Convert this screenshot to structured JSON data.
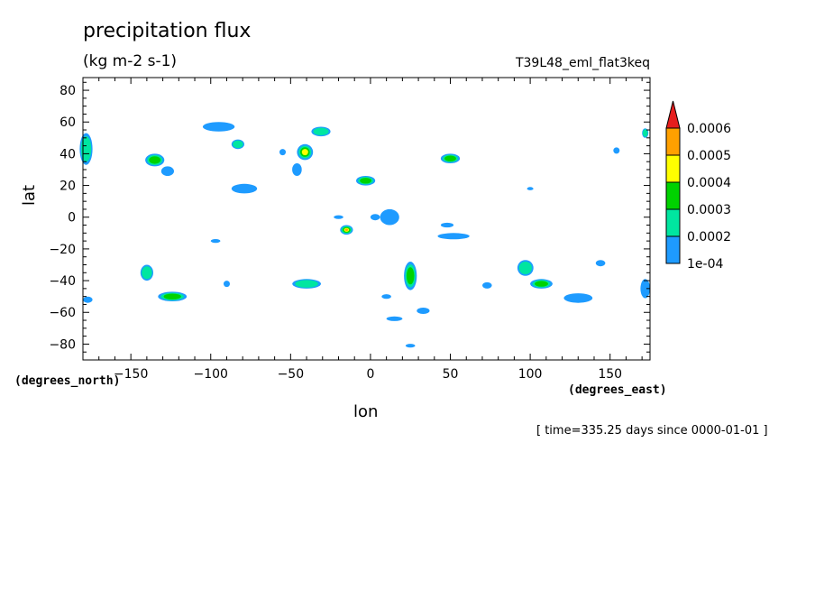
{
  "header": {
    "title": "precipitation flux",
    "units": "(kg m-2 s-1)",
    "run_name": "T39L48_eml_flat3keq",
    "time_note": "[ time=335.25 days since 0000-01-01 ]"
  },
  "axes": {
    "xlabel": "lon",
    "ylabel": "lat",
    "x_units": "(degrees_east)",
    "y_units": "(degrees_north)"
  },
  "colors": {
    "level1": "#1e9bff",
    "level2": "#00e6a0",
    "level3": "#00d200",
    "level4": "#ffff00",
    "level5": "#ffa000",
    "level6": "#e61e1e"
  },
  "chart_data": {
    "type": "contour",
    "title": "precipitation flux",
    "subtitle": "(kg m-2 s-1)",
    "xlabel": "lon",
    "ylabel": "lat",
    "xlim": [
      -180,
      175
    ],
    "ylim": [
      -90,
      88
    ],
    "xticks": [
      -150,
      -100,
      -50,
      0,
      50,
      100,
      150
    ],
    "yticks": [
      -80,
      -60,
      -40,
      -20,
      0,
      20,
      40,
      60,
      80
    ],
    "grid": false,
    "colorbar": {
      "levels": [
        "1e-04",
        "0.0002",
        "0.0003",
        "0.0004",
        "0.0005",
        "0.0006"
      ],
      "placement": "right"
    },
    "features": [
      {
        "lon": -178,
        "lat": 43,
        "dlon": 4,
        "dlat": 10,
        "peak": 0.00022
      },
      {
        "lon": -135,
        "lat": 36,
        "dlon": 6,
        "dlat": 4,
        "peak": 0.0003
      },
      {
        "lon": -127,
        "lat": 29,
        "dlon": 4,
        "dlat": 3,
        "peak": 0.00012
      },
      {
        "lon": -95,
        "lat": 57,
        "dlon": 10,
        "dlat": 3,
        "peak": 0.00016
      },
      {
        "lon": -83,
        "lat": 46,
        "dlon": 4,
        "dlat": 3,
        "peak": 0.00025
      },
      {
        "lon": -79,
        "lat": 18,
        "dlon": 8,
        "dlat": 3,
        "peak": 0.00018
      },
      {
        "lon": -41,
        "lat": 41,
        "dlon": 5,
        "dlat": 5,
        "peak": 0.00042
      },
      {
        "lon": -46,
        "lat": 30,
        "dlon": 3,
        "dlat": 4,
        "peak": 0.00015
      },
      {
        "lon": -31,
        "lat": 54,
        "dlon": 6,
        "dlat": 3,
        "peak": 0.00022
      },
      {
        "lon": -55,
        "lat": 41,
        "dlon": 2,
        "dlat": 2,
        "peak": 0.00012
      },
      {
        "lon": -3,
        "lat": 23,
        "dlon": 6,
        "dlat": 3,
        "peak": 0.0003
      },
      {
        "lon": 50,
        "lat": 37,
        "dlon": 6,
        "dlat": 3,
        "peak": 0.00032
      },
      {
        "lon": -15,
        "lat": -8,
        "dlon": 4,
        "dlat": 3,
        "peak": 0.00058
      },
      {
        "lon": 12,
        "lat": 0,
        "dlon": 6,
        "dlat": 5,
        "peak": 0.00014
      },
      {
        "lon": 52,
        "lat": -12,
        "dlon": 10,
        "dlat": 2,
        "peak": 0.00013
      },
      {
        "lon": 48,
        "lat": -5,
        "dlon": 4,
        "dlat": 1.5,
        "peak": 0.00011
      },
      {
        "lon": -140,
        "lat": -35,
        "dlon": 4,
        "dlat": 5,
        "peak": 0.00028
      },
      {
        "lon": -124,
        "lat": -50,
        "dlon": 9,
        "dlat": 3,
        "peak": 0.00034
      },
      {
        "lon": -177,
        "lat": -52,
        "dlon": 3,
        "dlat": 2,
        "peak": 0.00014
      },
      {
        "lon": -40,
        "lat": -42,
        "dlon": 9,
        "dlat": 3,
        "peak": 0.00024
      },
      {
        "lon": 25,
        "lat": -37,
        "dlon": 4,
        "dlat": 9,
        "peak": 0.0003
      },
      {
        "lon": 97,
        "lat": -32,
        "dlon": 5,
        "dlat": 5,
        "peak": 0.00026
      },
      {
        "lon": 107,
        "lat": -42,
        "dlon": 7,
        "dlat": 3,
        "peak": 0.00034
      },
      {
        "lon": 130,
        "lat": -51,
        "dlon": 9,
        "dlat": 3,
        "peak": 0.00018
      },
      {
        "lon": 144,
        "lat": -29,
        "dlon": 3,
        "dlat": 2,
        "peak": 0.00016
      },
      {
        "lon": 172,
        "lat": -45,
        "dlon": 3,
        "dlat": 6,
        "peak": 0.00018
      },
      {
        "lon": 172,
        "lat": 53,
        "dlon": 2,
        "dlat": 3,
        "peak": 0.00024
      },
      {
        "lon": 154,
        "lat": 42,
        "dlon": 2,
        "dlat": 2,
        "peak": 0.00013
      },
      {
        "lon": 33,
        "lat": -59,
        "dlon": 4,
        "dlat": 2,
        "peak": 0.00016
      },
      {
        "lon": 15,
        "lat": -64,
        "dlon": 5,
        "dlat": 1.5,
        "peak": 0.00013
      },
      {
        "lon": -90,
        "lat": -42,
        "dlon": 2,
        "dlat": 2,
        "peak": 0.00013
      },
      {
        "lon": -97,
        "lat": -15,
        "dlon": 3,
        "dlat": 1.2,
        "peak": 0.00011
      },
      {
        "lon": 73,
        "lat": -43,
        "dlon": 3,
        "dlat": 2,
        "peak": 0.00013
      },
      {
        "lon": 25,
        "lat": -81,
        "dlon": 3,
        "dlat": 1.2,
        "peak": 0.00011
      },
      {
        "lon": -20,
        "lat": 0,
        "dlon": 3,
        "dlat": 1.2,
        "peak": 0.00011
      },
      {
        "lon": 3,
        "lat": 0,
        "dlon": 3,
        "dlat": 2,
        "peak": 0.00012
      },
      {
        "lon": 10,
        "lat": -50,
        "dlon": 3,
        "dlat": 1.5,
        "peak": 0.00011
      },
      {
        "lon": 100,
        "lat": 18,
        "dlon": 2,
        "dlat": 1,
        "peak": 0.00011
      }
    ]
  }
}
